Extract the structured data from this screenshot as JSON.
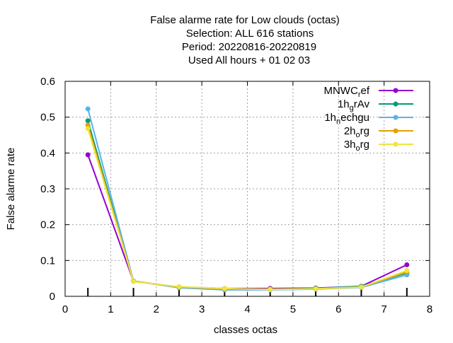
{
  "chart_data": {
    "type": "line",
    "title_lines": [
      "False alarme rate  for Low clouds (octas)",
      "Selection: ALL    616 stations",
      "Period: 20220816-20220819",
      "Used  All hours  + 01 02 03"
    ],
    "xlabel": "classes octas",
    "ylabel": "False alarme rate",
    "xlim": [
      0,
      8
    ],
    "ylim": [
      0,
      0.6
    ],
    "xticks": [
      "0",
      "1",
      "2",
      "3",
      "4",
      "5",
      "6",
      "7",
      "8"
    ],
    "yticks": [
      "0",
      "0.1",
      "0.2",
      "0.3",
      "0.4",
      "0.5",
      "0.6"
    ],
    "grid": true,
    "legend_position": "top-right",
    "x": [
      0.5,
      1.5,
      2.5,
      3.5,
      4.5,
      5.5,
      6.5,
      7.5
    ],
    "series": [
      {
        "name_main": "MNWC",
        "name_sub": "r",
        "name_tail": "ef",
        "color": "#9400d3",
        "values": [
          0.395,
          0.042,
          0.026,
          0.022,
          0.022,
          0.023,
          0.028,
          0.088
        ]
      },
      {
        "name_main": "1h",
        "name_sub": "g",
        "name_tail": "rAv",
        "color": "#009e73",
        "values": [
          0.49,
          0.042,
          0.025,
          0.02,
          0.02,
          0.022,
          0.028,
          0.065
        ]
      },
      {
        "name_main": "1h",
        "name_sub": "n",
        "name_tail": "echgu",
        "color": "#56b4e9",
        "values": [
          0.523,
          0.043,
          0.024,
          0.018,
          0.018,
          0.02,
          0.025,
          0.06
        ]
      },
      {
        "name_main": "2h",
        "name_sub": "o",
        "name_tail": "rg",
        "color": "#e69f00",
        "values": [
          0.478,
          0.042,
          0.026,
          0.021,
          0.02,
          0.021,
          0.026,
          0.068
        ]
      },
      {
        "name_main": "3h",
        "name_sub": "o",
        "name_tail": "rg",
        "color": "#f0e442",
        "values": [
          0.468,
          0.041,
          0.027,
          0.022,
          0.019,
          0.021,
          0.026,
          0.072
        ]
      }
    ]
  }
}
